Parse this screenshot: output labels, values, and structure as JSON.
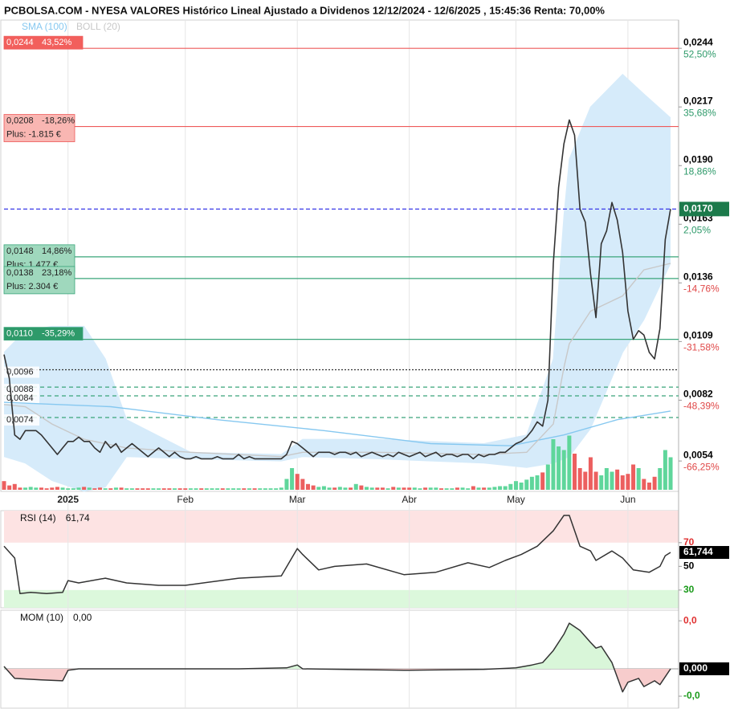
{
  "chart_data": [
    {
      "type": "line",
      "title": "PCBOLSA.COM - NYESA VALORES Histórico Lineal Ajustado a Dividenos 12/12/2024 - 12/6/2025 , 15:45:36 Renta: 70,00%",
      "x": [
        0,
        1,
        2,
        3,
        4,
        5,
        6,
        7,
        8,
        9,
        10,
        11,
        12,
        13,
        14,
        15,
        16,
        17,
        18,
        19,
        20,
        21,
        22,
        23,
        24,
        25,
        26,
        27,
        28,
        29,
        30,
        31,
        32,
        33,
        34,
        35,
        36,
        37,
        38,
        39,
        40,
        41,
        42,
        43,
        44,
        45,
        46,
        47,
        48,
        49,
        50,
        51,
        52,
        53,
        54,
        55,
        56,
        57,
        58,
        59,
        60,
        61,
        62,
        63,
        64,
        65,
        66,
        67,
        68,
        69,
        70,
        71,
        72,
        73,
        74,
        75,
        76,
        77,
        78,
        79,
        80,
        81,
        82,
        83,
        84,
        85,
        86,
        87,
        88,
        89,
        90,
        91,
        92,
        93,
        94,
        95,
        96,
        97,
        98,
        99,
        100,
        101,
        102,
        103,
        104,
        105,
        106,
        107,
        108,
        109,
        110,
        111,
        112,
        113,
        114,
        115,
        116,
        117,
        118,
        119,
        120,
        121,
        122,
        123,
        124,
        125
      ],
      "xlim": [
        0,
        126.5
      ],
      "xticks": [
        {
          "value": 12,
          "label": "2025"
        },
        {
          "value": 34,
          "label": "Feb"
        },
        {
          "value": 55,
          "label": "Mar"
        },
        {
          "value": 76,
          "label": "Abr"
        },
        {
          "value": 96,
          "label": "May"
        },
        {
          "value": 117,
          "label": "Jun"
        }
      ],
      "ylim": [
        0.004,
        0.0257
      ],
      "yticks": [
        {
          "value": 0.0244,
          "label": "0,0244"
        },
        {
          "value": 0.0217,
          "label": "0,0217"
        },
        {
          "value": 0.019,
          "label": "0,0190"
        },
        {
          "value": 0.0163,
          "label": "0,0163"
        },
        {
          "value": 0.0136,
          "label": "0,0136"
        },
        {
          "value": 0.0109,
          "label": "0,0109"
        },
        {
          "value": 0.0082,
          "label": "0,0082"
        },
        {
          "value": 0.0054,
          "label": "0,0054"
        }
      ],
      "ytick_notes": [
        "52,50%",
        "35,68%",
        "18,86%",
        "2,05%",
        "-14,76%",
        "-31,58%",
        "-48,39%",
        "-66,25%"
      ],
      "grid": true,
      "color": "#333333",
      "values": [
        0.0103,
        0.0092,
        0.0066,
        0.0064,
        0.0068,
        0.0068,
        0.0068,
        0.0066,
        0.0063,
        0.006,
        0.0057,
        0.006,
        0.0063,
        0.0063,
        0.0065,
        0.0063,
        0.0063,
        0.006,
        0.0058,
        0.0063,
        0.006,
        0.0062,
        0.0058,
        0.006,
        0.0062,
        0.006,
        0.0058,
        0.0056,
        0.0058,
        0.006,
        0.0058,
        0.0056,
        0.0058,
        0.0056,
        0.0055,
        0.0055,
        0.0056,
        0.0055,
        0.0055,
        0.0055,
        0.0056,
        0.0055,
        0.0055,
        0.0055,
        0.0057,
        0.0055,
        0.0056,
        0.0055,
        0.0055,
        0.0055,
        0.0055,
        0.0055,
        0.0055,
        0.0057,
        0.0063,
        0.0062,
        0.006,
        0.0058,
        0.0056,
        0.0058,
        0.0058,
        0.0058,
        0.0057,
        0.0058,
        0.0058,
        0.0057,
        0.0058,
        0.0056,
        0.0057,
        0.0058,
        0.0057,
        0.0056,
        0.0057,
        0.0056,
        0.0058,
        0.0057,
        0.0056,
        0.0057,
        0.0058,
        0.0056,
        0.0057,
        0.0058,
        0.0056,
        0.0057,
        0.0057,
        0.0056,
        0.0057,
        0.0057,
        0.0055,
        0.0057,
        0.0056,
        0.0057,
        0.0057,
        0.0058,
        0.0058,
        0.006,
        0.0062,
        0.0063,
        0.0065,
        0.0068,
        0.0072,
        0.007,
        0.0082,
        0.0145,
        0.018,
        0.02,
        0.0211,
        0.0204,
        0.017,
        0.0164,
        0.014,
        0.012,
        0.0154,
        0.016,
        0.0173,
        0.0165,
        0.015,
        0.0123,
        0.011,
        0.0114,
        0.0112,
        0.0104,
        0.0101,
        0.0115,
        0.0156,
        0.017
      ],
      "volume": [
        12,
        6,
        8,
        3,
        3,
        4,
        3,
        3,
        2,
        3,
        4,
        3,
        2,
        2,
        3,
        4,
        3,
        2,
        3,
        2,
        2,
        3,
        3,
        2,
        2,
        2,
        2,
        2,
        2,
        2,
        2,
        2,
        2,
        2,
        2,
        2,
        2,
        2,
        2,
        2,
        2,
        2,
        2,
        2,
        2,
        2,
        2,
        2,
        2,
        2,
        2,
        2,
        3,
        15,
        30,
        22,
        15,
        8,
        6,
        4,
        5,
        3,
        3,
        4,
        3,
        3,
        8,
        6,
        4,
        3,
        3,
        3,
        2,
        4,
        3,
        3,
        3,
        3,
        2,
        3,
        3,
        3,
        2,
        2,
        2,
        3,
        3,
        2,
        5,
        3,
        3,
        3,
        4,
        5,
        5,
        8,
        12,
        10,
        14,
        18,
        20,
        24,
        35,
        70,
        60,
        55,
        75,
        50,
        30,
        25,
        45,
        25,
        20,
        30,
        25,
        28,
        20,
        22,
        35,
        30,
        15,
        10,
        18,
        30,
        55,
        45
      ],
      "up_color": "#5fd69b",
      "down_color": "#ec5f5f",
      "series": [
        {
          "name": "SMA (100)",
          "color": "#86c8f0",
          "x": [
            0,
            20,
            40,
            60,
            80,
            95,
            105,
            115,
            125
          ],
          "values": [
            0.0081,
            0.0079,
            0.0073,
            0.0068,
            0.0062,
            0.0061,
            0.0066,
            0.0073,
            0.0077
          ]
        },
        {
          "name": "BOLL (20)",
          "color": "#c8c8c8",
          "band_color": "#d6ebfa",
          "x": [
            0,
            4,
            9,
            15,
            19,
            23,
            35,
            52,
            56,
            70,
            90,
            98,
            103,
            105,
            106,
            110,
            116,
            120,
            125
          ],
          "values": [
            0.008,
            0.0079,
            0.0071,
            0.0064,
            0.0062,
            0.006,
            0.0058,
            0.0056,
            0.0058,
            0.0058,
            0.0057,
            0.0058,
            0.0071,
            0.0097,
            0.0108,
            0.0123,
            0.013,
            0.0142,
            0.0145
          ],
          "upper": [
            0.0104,
            0.0114,
            0.0116,
            0.0116,
            0.0101,
            0.0073,
            0.0058,
            0.0057,
            0.0064,
            0.0064,
            0.0062,
            0.0066,
            0.0101,
            0.0167,
            0.0193,
            0.0217,
            0.0232,
            0.0223,
            0.0212
          ],
          "lower": [
            0.0056,
            0.0053,
            0.0045,
            0.004,
            0.0042,
            0.0056,
            0.0055,
            0.0054,
            0.0056,
            0.0055,
            0.0053,
            0.0051,
            0.0053,
            0.0055,
            0.0056,
            0.0069,
            0.0104,
            0.0119,
            0.0145
          ]
        }
      ],
      "current": {
        "value": 0.017,
        "label": "0,0170",
        "color": "#3a3ae8",
        "box": "#1c7a4b"
      },
      "levels": [
        {
          "value": 0.0244,
          "label": "0,0244",
          "note": "43,52%",
          "color": "#ee5a5a",
          "box": "#f25f5c",
          "text_color": "#ffffff",
          "style": "solid"
        },
        {
          "value": 0.0208,
          "label": "0,0208",
          "note": "-18,26%",
          "extra": "Plus: -1.815 €",
          "color": "#ee5a5a",
          "box": "#f9b6b2",
          "text_color": "#222222",
          "style": "solid"
        },
        {
          "value": 0.0148,
          "label": "0,0148",
          "note": "14,86%",
          "extra": "Plus: 1.477 €",
          "color": "#3aa57a",
          "box": "#9fd8bd",
          "text_color": "#222222",
          "style": "solid"
        },
        {
          "value": 0.0138,
          "label": "0,0138",
          "note": "23,18%",
          "extra": "Plus: 2.304 €",
          "color": "#3aa57a",
          "box": "#9fd8bd",
          "text_color": "#222222",
          "style": "solid"
        },
        {
          "value": 0.011,
          "label": "0,0110",
          "note": "-35,29%",
          "color": "#3aa57a",
          "box": "#2e9a6a",
          "text_color": "#ffffff",
          "style": "solid"
        },
        {
          "value": 0.0096,
          "label": "0,0096",
          "color": "#333333",
          "text_color": "#222222",
          "style": "dotted"
        },
        {
          "value": 0.0088,
          "label": "0,0088",
          "color": "#3aa57a",
          "text_color": "#222222",
          "style": "dashed"
        },
        {
          "value": 0.0084,
          "label": "0,0084",
          "color": "#3aa57a",
          "text_color": "#222222",
          "style": "dashed"
        },
        {
          "value": 0.0074,
          "label": "0,0074",
          "color": "#3aa57a",
          "text_color": "#222222",
          "style": "dashed"
        }
      ]
    },
    {
      "type": "line",
      "title": "RSI (14)",
      "header_value": "61,74",
      "axis_value": "61,744",
      "x": [
        0,
        2,
        3,
        5,
        8,
        11,
        12,
        14,
        19,
        23,
        29,
        34,
        44,
        52,
        55,
        56,
        59,
        62,
        68,
        75,
        81,
        87,
        91,
        94,
        97,
        100,
        103,
        105,
        106,
        108,
        110,
        111,
        114,
        116,
        118,
        121,
        123,
        124,
        125
      ],
      "values": [
        67,
        57,
        27,
        28,
        27,
        28,
        38,
        36,
        40,
        36,
        34,
        34,
        40,
        42,
        65,
        60,
        47,
        50,
        52,
        43,
        45,
        53,
        49,
        55,
        60,
        67,
        80,
        93,
        93,
        67,
        63,
        55,
        63,
        57,
        47,
        45,
        50,
        59,
        61.744
      ],
      "xlim": [
        0,
        126.5
      ],
      "ylim": [
        15,
        97
      ],
      "yticks": [
        30,
        50,
        70
      ],
      "ytick_colors": [
        "#1a9a1a",
        "#000000",
        "#e03030"
      ],
      "overbought": 70,
      "oversold": 30,
      "zone_colors": [
        "#fde3e3",
        "#dcf8dc"
      ],
      "color": "#333333"
    },
    {
      "type": "line",
      "title": "MOM (10)",
      "header_value": "0,00",
      "axis_value": "0,000",
      "x": [
        0,
        2,
        7,
        11,
        12,
        14,
        29,
        44,
        53,
        55,
        56,
        75,
        90,
        96,
        99,
        101,
        103,
        105,
        106,
        108,
        110,
        111,
        112,
        114,
        116,
        117,
        119,
        120,
        122,
        123,
        125
      ],
      "values": [
        0.0005,
        -0.002,
        -0.0023,
        -0.0025,
        -0.0003,
        0,
        0,
        0,
        0.0002,
        0.0008,
        0,
        -0.0003,
        -0.0001,
        0.0002,
        0.0008,
        0.0013,
        0.0038,
        0.0072,
        0.0095,
        0.008,
        0.0055,
        0.0043,
        0.0047,
        0.0013,
        -0.0048,
        -0.0028,
        -0.002,
        -0.0037,
        -0.0025,
        -0.0033,
        0
      ],
      "xlim": [
        0,
        126.5
      ],
      "ylim": [
        -0.0082,
        0.0122
      ],
      "yticks": [
        {
          "value": -0.0057,
          "label": "-0,0"
        },
        {
          "value": 0.01,
          "label": "0,0"
        }
      ],
      "ytick_colors": [
        "#1a9a1a",
        "#e03030"
      ],
      "fill_colors": [
        "#d9f6d9",
        "#f7cccc"
      ],
      "color": "#333333"
    }
  ]
}
